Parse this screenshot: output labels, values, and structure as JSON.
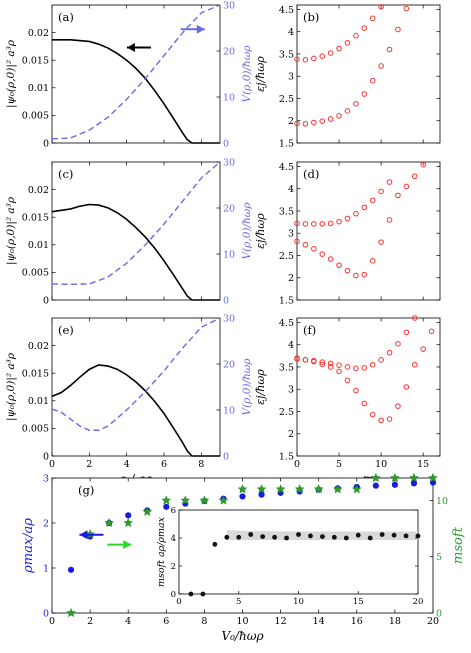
{
  "chart_data": [
    {
      "type": "line",
      "panel": "a",
      "label": "(a)",
      "xlabel": "",
      "ylabel": "|ψ₀(ρ,0)|² a³ρ",
      "y2label": "V(ρ,0)/ħωρ",
      "xlim": [
        0,
        9
      ],
      "ylim": [
        0,
        0.025
      ],
      "y2lim": [
        0,
        30
      ],
      "xticks": [
        0,
        2,
        4,
        6,
        8
      ],
      "yticks": [
        0,
        0.005,
        0.01,
        0.015,
        0.02
      ],
      "y2ticks": [
        0,
        10,
        20,
        30
      ],
      "xticklabels_visible": false,
      "series": [
        {
          "axis": "left",
          "style": "solid",
          "color": "#000000",
          "x": [
            0,
            1,
            2,
            2.5,
            3,
            3.5,
            4,
            4.5,
            5,
            5.5,
            6,
            6.5,
            7,
            7.25,
            7.5,
            8,
            9
          ],
          "y": [
            0.0187,
            0.0187,
            0.0184,
            0.0179,
            0.0172,
            0.0162,
            0.015,
            0.0135,
            0.0117,
            0.0095,
            0.0071,
            0.0045,
            0.0018,
            0.0006,
            0,
            0,
            0
          ]
        },
        {
          "axis": "right",
          "style": "dashed",
          "color": "#6a6ae8",
          "x": [
            0,
            1,
            2,
            3,
            4,
            5,
            6,
            7,
            8,
            9
          ],
          "y": [
            0.9,
            1.1,
            2.8,
            5.6,
            9.5,
            14.0,
            19.0,
            24.0,
            28.3,
            30
          ]
        }
      ],
      "arrows": [
        {
          "direction": "left",
          "color": "#000000",
          "x": 5.3,
          "y": 0.0173
        },
        {
          "direction": "right",
          "color": "#6a6ae8",
          "x": 6.9,
          "y": 0.0206
        }
      ]
    },
    {
      "type": "scatter",
      "panel": "b",
      "label": "(b)",
      "xlabel": "",
      "ylabel": "εj/ħωρ",
      "xlim": [
        0,
        17
      ],
      "ylim": [
        1.5,
        4.6
      ],
      "xticks": [
        0,
        5,
        10,
        15
      ],
      "yticks": [
        1.5,
        2,
        2.5,
        3,
        3.5,
        4,
        4.5
      ],
      "xticklabels_visible": false,
      "marker": {
        "color": "#ff3030",
        "shape": "open-circle"
      },
      "series": [
        {
          "x": [
            0,
            1,
            2,
            3,
            4,
            5,
            6,
            7,
            8,
            9,
            10
          ],
          "y": [
            3.38,
            3.37,
            3.4,
            3.45,
            3.52,
            3.62,
            3.75,
            3.91,
            4.08,
            4.3,
            4.56
          ]
        },
        {
          "x": [
            0,
            1,
            2,
            3,
            4,
            5,
            6,
            7,
            8,
            9,
            10,
            11,
            12,
            13
          ],
          "y": [
            1.94,
            1.93,
            1.96,
            1.99,
            2.04,
            2.11,
            2.22,
            2.38,
            2.6,
            2.9,
            3.23,
            3.6,
            4.05,
            4.52
          ]
        }
      ]
    },
    {
      "type": "line",
      "panel": "c",
      "label": "(c)",
      "xlabel": "",
      "ylabel": "|ψ₀(ρ,0)|² a³ρ",
      "y2label": "V(ρ,0)/ħωρ",
      "xlim": [
        0,
        9
      ],
      "ylim": [
        0,
        0.025
      ],
      "y2lim": [
        0,
        30
      ],
      "xticks": [
        0,
        2,
        4,
        6,
        8
      ],
      "yticks": [
        0,
        0.005,
        0.01,
        0.015,
        0.02
      ],
      "y2ticks": [
        0,
        10,
        20,
        30
      ],
      "xticklabels_visible": false,
      "series": [
        {
          "axis": "left",
          "style": "solid",
          "color": "#000000",
          "x": [
            0,
            1,
            1.5,
            2,
            2.5,
            3,
            3.5,
            4,
            4.5,
            5,
            5.5,
            6,
            6.5,
            7,
            7.25,
            7.5,
            8,
            9
          ],
          "y": [
            0.016,
            0.0165,
            0.017,
            0.0173,
            0.0172,
            0.0167,
            0.0158,
            0.0146,
            0.0131,
            0.0114,
            0.0094,
            0.0071,
            0.0046,
            0.002,
            0.0007,
            0,
            0,
            0
          ]
        },
        {
          "axis": "right",
          "style": "dashed",
          "color": "#6a6ae8",
          "x": [
            0,
            1,
            2,
            3,
            4,
            5,
            6,
            7,
            8,
            9
          ],
          "y": [
            3.5,
            3.4,
            3.5,
            5.0,
            8.0,
            12.0,
            16.5,
            21.5,
            26.5,
            30
          ]
        }
      ]
    },
    {
      "type": "scatter",
      "panel": "d",
      "label": "(d)",
      "xlabel": "",
      "ylabel": "εj/ħωρ",
      "xlim": [
        0,
        17
      ],
      "ylim": [
        1.5,
        4.6
      ],
      "xticks": [
        0,
        5,
        10,
        15
      ],
      "yticks": [
        1.5,
        2,
        2.5,
        3,
        3.5,
        4,
        4.5
      ],
      "xticklabels_visible": false,
      "marker": {
        "color": "#ff3030",
        "shape": "open-circle"
      },
      "series": [
        {
          "x": [
            0,
            1,
            2,
            3,
            4,
            5,
            6,
            7,
            8,
            9,
            10,
            11,
            12,
            13,
            14,
            15
          ],
          "y": [
            3.22,
            3.21,
            3.21,
            3.21,
            3.22,
            3.26,
            3.33,
            3.44,
            3.58,
            3.74,
            3.94,
            4.15,
            3.85,
            4.05,
            4.28,
            4.54
          ]
        },
        {
          "x": [
            0,
            1,
            2,
            3,
            4,
            5,
            6,
            7,
            8,
            9,
            10,
            11
          ],
          "y": [
            2.82,
            2.74,
            2.65,
            2.53,
            2.42,
            2.28,
            2.16,
            2.05,
            2.07,
            2.38,
            2.8,
            3.3
          ]
        }
      ]
    },
    {
      "type": "line",
      "panel": "e",
      "label": "(e)",
      "xlabel": "ρ / aρ",
      "ylabel": "|ψ₀(ρ,0)|² a³ρ",
      "y2label": "V(ρ,0)/ħωρ",
      "xlim": [
        0,
        9
      ],
      "ylim": [
        0,
        0.025
      ],
      "y2lim": [
        0,
        30
      ],
      "xticks": [
        0,
        2,
        4,
        6,
        8
      ],
      "yticks": [
        0,
        0.005,
        0.01,
        0.015,
        0.02
      ],
      "y2ticks": [
        0,
        10,
        20,
        30
      ],
      "xticklabels_visible": true,
      "series": [
        {
          "axis": "left",
          "style": "solid",
          "color": "#000000",
          "x": [
            0,
            0.5,
            1,
            1.5,
            2,
            2.5,
            3,
            3.5,
            4,
            4.5,
            5,
            5.5,
            6,
            6.5,
            7,
            7.25,
            7.5,
            8,
            9
          ],
          "y": [
            0.0108,
            0.0115,
            0.0128,
            0.0143,
            0.0157,
            0.0165,
            0.0163,
            0.0157,
            0.0147,
            0.0134,
            0.0118,
            0.0099,
            0.0077,
            0.0051,
            0.0024,
            0.0009,
            0,
            0,
            0
          ]
        },
        {
          "axis": "right",
          "style": "dashed",
          "color": "#6a6ae8",
          "x": [
            0,
            0.5,
            1,
            1.5,
            2,
            2.5,
            3,
            4,
            5,
            6,
            7,
            8,
            9
          ],
          "y": [
            10.2,
            9.5,
            8.0,
            6.5,
            5.6,
            5.6,
            6.5,
            10.0,
            14.0,
            18.5,
            23.5,
            28.0,
            30
          ]
        }
      ]
    },
    {
      "type": "scatter",
      "panel": "f",
      "label": "(f)",
      "xlabel": "m",
      "ylabel": "εj/ħωρ",
      "xlim": [
        0,
        17
      ],
      "ylim": [
        1.5,
        4.6
      ],
      "xticks": [
        0,
        5,
        10,
        15
      ],
      "yticks": [
        1.5,
        2,
        2.5,
        3,
        3.5,
        4,
        4.5
      ],
      "xticklabels_visible": true,
      "marker": {
        "color": "#ff3030",
        "shape": "open-circle"
      },
      "series": [
        {
          "x": [
            0,
            1,
            2,
            3,
            4,
            5,
            6,
            7,
            8,
            9,
            10,
            11,
            12,
            13,
            14,
            15,
            16
          ],
          "y": [
            3.68,
            3.66,
            3.64,
            3.61,
            3.58,
            3.54,
            3.5,
            3.47,
            3.48,
            3.55,
            3.66,
            3.82,
            4.02,
            4.28,
            4.6,
            3.9,
            4.3
          ]
        },
        {
          "x": [
            0,
            1,
            2,
            3,
            4,
            5,
            6,
            7,
            8,
            9,
            10,
            11,
            12,
            13,
            14
          ],
          "y": [
            3.7,
            3.66,
            3.62,
            3.56,
            3.5,
            3.4,
            3.2,
            2.97,
            2.68,
            2.43,
            2.3,
            2.33,
            2.62,
            3.05,
            3.55
          ]
        }
      ]
    },
    {
      "type": "scatter",
      "panel": "g",
      "label": "(g)",
      "xlabel": "V₀/ħωρ",
      "ylabel": "ρmax/aρ",
      "y2label": "msoft",
      "xlim": [
        0,
        20
      ],
      "ylim": [
        0,
        3
      ],
      "y2lim": [
        0,
        12
      ],
      "xticks": [
        0,
        2,
        4,
        6,
        8,
        10,
        12,
        14,
        16,
        18,
        20
      ],
      "yticks": [
        0,
        1,
        2,
        3
      ],
      "y2ticks": [
        0,
        5,
        10
      ],
      "series": [
        {
          "axis": "left",
          "marker": "filled-circle",
          "color": "#1a1ae0",
          "x": [
            1,
            2,
            3,
            4,
            5,
            6,
            7,
            8,
            9,
            10,
            11,
            12,
            13,
            14,
            15,
            16,
            17,
            18,
            19,
            20
          ],
          "y": [
            0.96,
            1.7,
            2.0,
            2.17,
            2.28,
            2.36,
            2.43,
            2.49,
            2.54,
            2.59,
            2.63,
            2.67,
            2.7,
            2.74,
            2.77,
            2.8,
            2.83,
            2.85,
            2.88,
            2.9
          ]
        },
        {
          "axis": "right",
          "marker": "filled-star",
          "color": "#2aa02a",
          "x": [
            1,
            2,
            3,
            4,
            5,
            6,
            7,
            8,
            9,
            10,
            11,
            12,
            13,
            14,
            15,
            16,
            17,
            18,
            19,
            20
          ],
          "y": [
            0,
            7,
            8,
            8,
            9,
            10,
            10,
            10,
            10,
            11,
            11,
            11,
            11,
            11,
            11,
            11,
            12,
            12,
            12,
            12
          ]
        }
      ],
      "arrows": [
        {
          "direction": "left",
          "color": "#1a1ae0",
          "x": 2.7,
          "y": 1.74
        },
        {
          "direction": "right",
          "color": "#22dd22",
          "x": 2.9,
          "y": 1.52
        }
      ],
      "inset": {
        "type": "scatter",
        "xlabel": "",
        "ylabel": "msoft aρ/ρmax",
        "xlim": [
          0,
          20
        ],
        "ylim": [
          0,
          6
        ],
        "xticks": [
          0,
          5,
          10,
          15,
          20
        ],
        "yticks": [
          0,
          2,
          4,
          6
        ],
        "marker": {
          "color": "#111111",
          "shape": "filled-circle"
        },
        "band": {
          "x": [
            4,
            6,
            8,
            10,
            12,
            14,
            16,
            18,
            20
          ],
          "lower": [
            3.85,
            3.85,
            3.85,
            3.85,
            3.85,
            3.85,
            3.85,
            3.85,
            3.85
          ],
          "upper": [
            4.55,
            4.5,
            4.48,
            4.46,
            4.46,
            4.46,
            4.46,
            4.46,
            4.46
          ]
        },
        "series": [
          {
            "x": [
              1,
              2,
              3,
              4,
              5,
              6,
              7,
              8,
              9,
              10,
              11,
              12,
              13,
              14,
              15,
              16,
              17,
              18,
              19,
              20
            ],
            "y": [
              0,
              0,
              3.55,
              4.05,
              4.05,
              4.25,
              4.1,
              4.05,
              4.0,
              4.25,
              4.15,
              4.1,
              4.05,
              4.0,
              4.2,
              4.0,
              4.25,
              4.2,
              4.15,
              4.15
            ]
          }
        ]
      }
    }
  ]
}
